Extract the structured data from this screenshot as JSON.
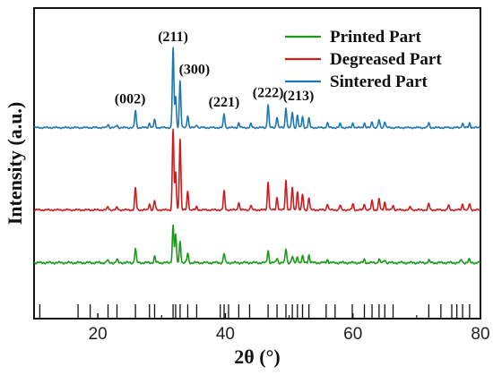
{
  "chart_data": {
    "type": "line",
    "xlabel": "2θ (°)",
    "ylabel": "Intensity (a.u.)",
    "xlim": [
      10,
      80
    ],
    "xticks": [
      "20",
      "40",
      "60",
      "80"
    ],
    "grid": false,
    "legend_position": "top-right",
    "series": [
      {
        "name": "Printed Part",
        "color": "#1a9b1a",
        "baseline": 0.18,
        "noise": 0.004,
        "peaks": [
          [
            21.5,
            0.008
          ],
          [
            23.0,
            0.01
          ],
          [
            25.9,
            0.045
          ],
          [
            28.9,
            0.02
          ],
          [
            31.8,
            0.12
          ],
          [
            32.2,
            0.09
          ],
          [
            32.9,
            0.07
          ],
          [
            34.1,
            0.03
          ],
          [
            39.8,
            0.03
          ],
          [
            46.7,
            0.04
          ],
          [
            48.1,
            0.015
          ],
          [
            49.5,
            0.045
          ],
          [
            50.5,
            0.02
          ],
          [
            51.3,
            0.02
          ],
          [
            52.1,
            0.02
          ],
          [
            53.1,
            0.025
          ],
          [
            56.0,
            0.01
          ],
          [
            61.8,
            0.01
          ],
          [
            64.1,
            0.012
          ],
          [
            65.0,
            0.01
          ],
          [
            71.9,
            0.008
          ],
          [
            77.0,
            0.01
          ],
          [
            78.2,
            0.01
          ]
        ]
      },
      {
        "name": "Degreased Part",
        "color": "#cc1c1c",
        "baseline": 0.35,
        "noise": 0.003,
        "peaks": [
          [
            21.6,
            0.01
          ],
          [
            23.0,
            0.008
          ],
          [
            25.9,
            0.07
          ],
          [
            28.1,
            0.02
          ],
          [
            28.9,
            0.03
          ],
          [
            31.8,
            0.26
          ],
          [
            32.2,
            0.12
          ],
          [
            32.9,
            0.23
          ],
          [
            34.1,
            0.06
          ],
          [
            35.5,
            0.01
          ],
          [
            39.8,
            0.06
          ],
          [
            42.1,
            0.025
          ],
          [
            44.0,
            0.015
          ],
          [
            46.7,
            0.09
          ],
          [
            48.1,
            0.04
          ],
          [
            49.5,
            0.095
          ],
          [
            50.5,
            0.07
          ],
          [
            51.3,
            0.06
          ],
          [
            52.1,
            0.05
          ],
          [
            53.1,
            0.04
          ],
          [
            56.0,
            0.02
          ],
          [
            58.0,
            0.015
          ],
          [
            60.0,
            0.02
          ],
          [
            61.8,
            0.02
          ],
          [
            63.0,
            0.03
          ],
          [
            64.1,
            0.035
          ],
          [
            65.0,
            0.025
          ],
          [
            66.3,
            0.015
          ],
          [
            69.0,
            0.01
          ],
          [
            71.9,
            0.02
          ],
          [
            75.0,
            0.015
          ],
          [
            77.2,
            0.02
          ],
          [
            78.3,
            0.02
          ]
        ]
      },
      {
        "name": "Sintered Part",
        "color": "#1f78b4",
        "baseline": 0.615,
        "noise": 0.003,
        "peaks": [
          [
            21.6,
            0.01
          ],
          [
            23.0,
            0.008
          ],
          [
            25.9,
            0.055
          ],
          [
            28.1,
            0.015
          ],
          [
            28.9,
            0.025
          ],
          [
            31.8,
            0.255
          ],
          [
            32.2,
            0.1
          ],
          [
            32.9,
            0.15
          ],
          [
            34.1,
            0.04
          ],
          [
            35.5,
            0.01
          ],
          [
            39.8,
            0.045
          ],
          [
            42.1,
            0.015
          ],
          [
            44.0,
            0.012
          ],
          [
            46.7,
            0.075
          ],
          [
            48.1,
            0.035
          ],
          [
            49.5,
            0.065
          ],
          [
            50.5,
            0.05
          ],
          [
            51.3,
            0.04
          ],
          [
            52.1,
            0.035
          ],
          [
            53.1,
            0.03
          ],
          [
            56.0,
            0.015
          ],
          [
            58.0,
            0.012
          ],
          [
            60.0,
            0.015
          ],
          [
            61.8,
            0.015
          ],
          [
            63.0,
            0.02
          ],
          [
            64.1,
            0.025
          ],
          [
            65.0,
            0.02
          ],
          [
            71.9,
            0.015
          ],
          [
            77.2,
            0.015
          ],
          [
            78.3,
            0.015
          ]
        ]
      }
    ],
    "reference_lines": {
      "color": "#111111",
      "positions": [
        10.9,
        16.9,
        18.8,
        21.6,
        23.0,
        25.9,
        28.1,
        28.9,
        31.8,
        32.2,
        32.9,
        34.1,
        35.5,
        39.2,
        39.8,
        40.5,
        42.1,
        43.8,
        46.7,
        48.1,
        49.5,
        50.5,
        51.3,
        52.1,
        53.1,
        55.8,
        57.2,
        59.9,
        61.8,
        63.0,
        64.1,
        65.0,
        66.3,
        71.9,
        73.8,
        75.5,
        76.3,
        77.2,
        78.3
      ]
    },
    "peak_labels": [
      {
        "text": "(002)",
        "x": 25.9
      },
      {
        "text": "(211)",
        "x": 31.8
      },
      {
        "text": "(300)",
        "x": 32.9
      },
      {
        "text": "(221)",
        "x": 39.8
      },
      {
        "text": "(222)",
        "x": 46.7
      },
      {
        "text": "(213)",
        "x": 49.5
      }
    ]
  }
}
